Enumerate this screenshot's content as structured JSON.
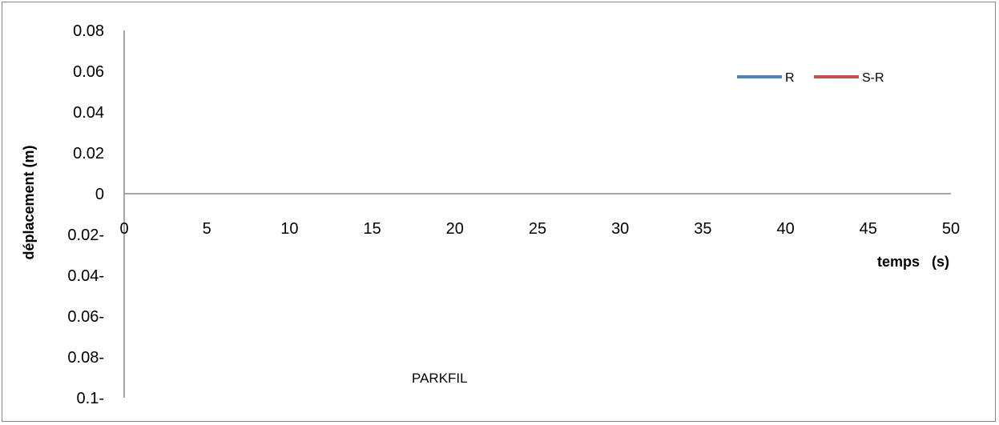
{
  "chart_data": {
    "type": "line",
    "title": "",
    "xlabel": "temps   (s)",
    "ylabel": "déplacement (m)",
    "xlim": [
      0,
      50
    ],
    "ylim": [
      -0.1,
      0.08
    ],
    "x_ticks": [
      0,
      5,
      10,
      15,
      20,
      25,
      30,
      35,
      40,
      45,
      50
    ],
    "x_tick_labels": [
      "0",
      "5",
      "10",
      "15",
      "20",
      "25",
      "30",
      "35",
      "40",
      "45",
      "50"
    ],
    "y_ticks": [
      0.08,
      0.06,
      0.04,
      0.02,
      0,
      -0.02,
      -0.04,
      -0.06,
      -0.08,
      -0.1
    ],
    "y_tick_labels": [
      "0.08",
      "0.06",
      "0.04",
      "0.02",
      "0",
      "0.02-",
      "0.04-",
      "0.06-",
      "0.08-",
      "0.1-"
    ],
    "grid": false,
    "legend_position": "top-right",
    "series": [
      {
        "name": "R",
        "color": "#4f81bd",
        "x": [],
        "y": []
      },
      {
        "name": "S-R",
        "color": "#c0504d",
        "x": [],
        "y": []
      }
    ],
    "annotations": [
      "PARKFIL"
    ]
  }
}
